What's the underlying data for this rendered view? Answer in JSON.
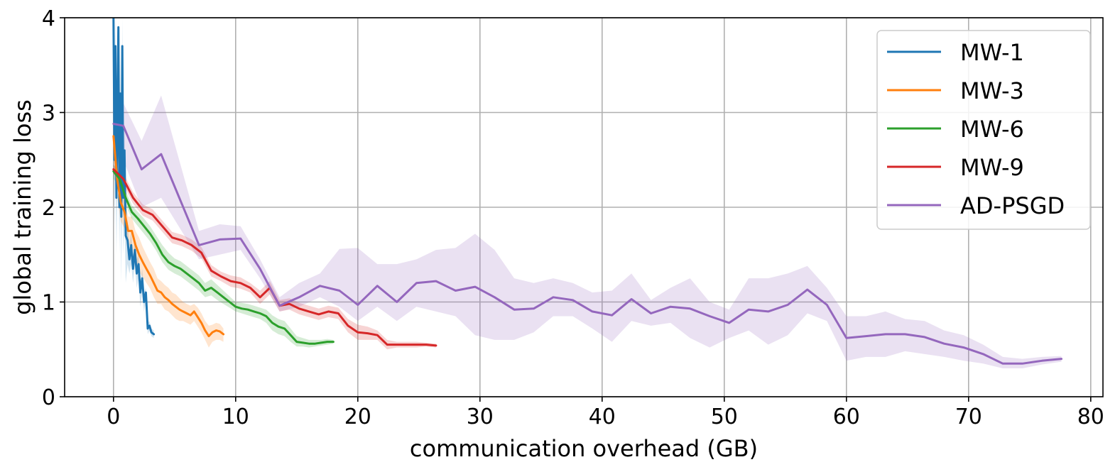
{
  "chart_data": {
    "type": "line",
    "title": "",
    "xlabel": "communication overhead (GB)",
    "ylabel": "global training loss",
    "xlim": [
      -4,
      81
    ],
    "ylim": [
      0,
      4
    ],
    "xticks": [
      0,
      10,
      20,
      30,
      40,
      50,
      60,
      70,
      80
    ],
    "yticks": [
      0,
      1,
      2,
      3,
      4
    ],
    "grid": true,
    "legend_position": "top-right",
    "series": [
      {
        "name": "MW-1",
        "color": "#1f77b4",
        "x": [
          0.0,
          0.08,
          0.16,
          0.24,
          0.32,
          0.4,
          0.48,
          0.56,
          0.64,
          0.72,
          0.8,
          0.9,
          1.0,
          1.15,
          1.3,
          1.45,
          1.6,
          1.75,
          1.9,
          2.05,
          2.2,
          2.35,
          2.5,
          2.65,
          2.8,
          2.95,
          3.1,
          3.3
        ],
        "y": [
          4.0,
          2.5,
          3.7,
          2.1,
          2.9,
          3.9,
          2.0,
          3.2,
          1.9,
          3.7,
          2.1,
          2.6,
          1.7,
          1.65,
          1.45,
          1.6,
          1.35,
          1.55,
          1.3,
          1.4,
          1.1,
          1.25,
          1.0,
          1.1,
          0.72,
          0.75,
          0.68,
          0.66
        ],
        "upper": [
          4.0,
          3.0,
          4.0,
          2.6,
          3.3,
          4.0,
          2.4,
          3.6,
          2.3,
          4.0,
          2.4,
          2.9,
          1.95,
          1.85,
          1.6,
          1.75,
          1.5,
          1.65,
          1.45,
          1.5,
          1.2,
          1.35,
          1.1,
          1.15,
          0.78,
          0.8,
          0.72,
          0.7
        ],
        "lower": [
          3.0,
          1.8,
          2.6,
          1.5,
          2.2,
          2.6,
          1.5,
          2.2,
          1.2,
          2.5,
          1.5,
          1.9,
          1.2,
          1.4,
          1.3,
          1.4,
          1.2,
          1.4,
          1.15,
          1.25,
          0.95,
          1.1,
          0.9,
          1.0,
          0.66,
          0.7,
          0.64,
          0.62
        ]
      },
      {
        "name": "MW-3",
        "color": "#ff7f0e",
        "x": [
          0.0,
          0.3,
          0.6,
          0.9,
          1.2,
          1.5,
          1.8,
          2.1,
          2.4,
          2.7,
          3.0,
          3.3,
          3.6,
          3.9,
          4.2,
          4.5,
          4.8,
          5.1,
          5.4,
          5.7,
          6.0,
          6.3,
          6.6,
          6.9,
          7.2,
          7.5,
          7.8,
          8.1,
          8.4,
          8.7,
          9.0
        ],
        "y": [
          2.75,
          2.3,
          2.05,
          1.95,
          1.75,
          1.75,
          1.6,
          1.5,
          1.42,
          1.35,
          1.28,
          1.2,
          1.12,
          1.1,
          1.05,
          1.02,
          0.98,
          0.95,
          0.92,
          0.9,
          0.88,
          0.86,
          0.9,
          0.84,
          0.78,
          0.7,
          0.64,
          0.68,
          0.7,
          0.69,
          0.66
        ],
        "upper": [
          2.85,
          2.5,
          2.2,
          2.1,
          1.9,
          1.9,
          1.75,
          1.68,
          1.58,
          1.5,
          1.42,
          1.35,
          1.25,
          1.22,
          1.18,
          1.15,
          1.1,
          1.08,
          1.04,
          1.0,
          0.98,
          0.96,
          0.98,
          0.94,
          0.88,
          0.8,
          0.75,
          0.76,
          0.78,
          0.77,
          0.72
        ],
        "lower": [
          2.5,
          2.1,
          1.85,
          1.78,
          1.6,
          1.6,
          1.45,
          1.32,
          1.26,
          1.2,
          1.14,
          1.05,
          0.98,
          0.98,
          0.92,
          0.9,
          0.86,
          0.82,
          0.8,
          0.8,
          0.78,
          0.76,
          0.8,
          0.74,
          0.68,
          0.6,
          0.52,
          0.58,
          0.6,
          0.6,
          0.58
        ]
      },
      {
        "name": "MW-6",
        "color": "#2ca02c",
        "x": [
          0.0,
          0.5,
          1.0,
          1.5,
          2.0,
          2.5,
          3.0,
          3.5,
          4.0,
          4.5,
          5.0,
          5.5,
          6.0,
          6.5,
          7.0,
          7.5,
          8.0,
          8.5,
          9.0,
          9.5,
          10.0,
          10.5,
          11.0,
          11.5,
          12.0,
          12.5,
          13.0,
          13.5,
          14.0,
          14.5,
          15.0,
          15.5,
          16.0,
          16.5,
          17.0,
          17.5,
          18.0
        ],
        "y": [
          2.38,
          2.3,
          2.1,
          1.95,
          1.88,
          1.8,
          1.72,
          1.62,
          1.5,
          1.42,
          1.38,
          1.35,
          1.3,
          1.25,
          1.2,
          1.12,
          1.15,
          1.1,
          1.05,
          1.0,
          0.95,
          0.93,
          0.92,
          0.9,
          0.88,
          0.85,
          0.78,
          0.74,
          0.72,
          0.65,
          0.58,
          0.57,
          0.56,
          0.56,
          0.57,
          0.58,
          0.58
        ],
        "upper": [
          2.45,
          2.36,
          2.18,
          2.02,
          1.95,
          1.88,
          1.8,
          1.7,
          1.6,
          1.52,
          1.46,
          1.43,
          1.38,
          1.33,
          1.28,
          1.2,
          1.24,
          1.18,
          1.12,
          1.06,
          1.0,
          0.99,
          0.98,
          0.96,
          0.94,
          0.92,
          0.86,
          0.82,
          0.8,
          0.72,
          0.64,
          0.62,
          0.6,
          0.6,
          0.6,
          0.61,
          0.6
        ],
        "lower": [
          2.3,
          2.22,
          2.02,
          1.88,
          1.8,
          1.72,
          1.64,
          1.54,
          1.42,
          1.34,
          1.3,
          1.27,
          1.22,
          1.17,
          1.12,
          1.05,
          1.07,
          1.02,
          0.98,
          0.94,
          0.9,
          0.88,
          0.86,
          0.84,
          0.82,
          0.78,
          0.7,
          0.66,
          0.64,
          0.58,
          0.53,
          0.53,
          0.52,
          0.53,
          0.54,
          0.55,
          0.56
        ]
      },
      {
        "name": "MW-9",
        "color": "#d62728",
        "x": [
          0.0,
          0.8,
          1.6,
          2.4,
          3.2,
          4.0,
          4.8,
          5.6,
          6.4,
          7.2,
          8.0,
          8.8,
          9.6,
          10.4,
          11.2,
          12.0,
          12.8,
          13.6,
          14.4,
          15.2,
          16.0,
          16.8,
          17.6,
          18.4,
          19.2,
          20.0,
          20.8,
          21.6,
          22.4,
          23.2,
          24.0,
          24.8,
          25.6,
          26.4
        ],
        "y": [
          2.4,
          2.3,
          2.1,
          1.97,
          1.92,
          1.8,
          1.68,
          1.65,
          1.6,
          1.52,
          1.33,
          1.27,
          1.22,
          1.2,
          1.15,
          1.05,
          1.15,
          0.96,
          0.98,
          0.93,
          0.9,
          0.87,
          0.9,
          0.88,
          0.75,
          0.68,
          0.67,
          0.65,
          0.55,
          0.55,
          0.55,
          0.55,
          0.55,
          0.54
        ],
        "upper": [
          2.45,
          2.36,
          2.16,
          2.03,
          1.98,
          1.86,
          1.74,
          1.71,
          1.66,
          1.58,
          1.39,
          1.32,
          1.28,
          1.26,
          1.2,
          1.12,
          1.22,
          1.02,
          1.04,
          0.99,
          0.96,
          0.93,
          0.96,
          0.94,
          0.82,
          0.76,
          0.74,
          0.7,
          0.6,
          0.58,
          0.58,
          0.58,
          0.57,
          0.56
        ],
        "lower": [
          2.35,
          2.24,
          2.04,
          1.91,
          1.86,
          1.74,
          1.62,
          1.59,
          1.54,
          1.46,
          1.27,
          1.22,
          1.16,
          1.14,
          1.1,
          0.98,
          1.08,
          0.9,
          0.92,
          0.87,
          0.84,
          0.81,
          0.84,
          0.82,
          0.68,
          0.6,
          0.6,
          0.6,
          0.5,
          0.52,
          0.52,
          0.52,
          0.53,
          0.52
        ]
      },
      {
        "name": "AD-PSGD",
        "color": "#9467bd",
        "x": [
          0.0,
          0.8,
          2.3,
          3.9,
          7.0,
          8.7,
          10.4,
          12.0,
          13.6,
          15.2,
          16.9,
          18.5,
          20.0,
          21.6,
          23.2,
          24.8,
          26.4,
          28.0,
          29.6,
          31.2,
          32.8,
          34.4,
          36.0,
          37.6,
          39.2,
          40.8,
          42.4,
          44.0,
          45.6,
          47.2,
          48.8,
          50.4,
          52.0,
          53.6,
          55.2,
          56.8,
          58.4,
          60.0,
          61.6,
          63.2,
          64.8,
          66.4,
          68.0,
          69.6,
          71.2,
          72.8,
          74.4,
          76.0,
          77.6
        ],
        "y": [
          2.88,
          2.86,
          2.4,
          2.56,
          1.6,
          1.66,
          1.67,
          1.35,
          0.96,
          1.05,
          1.17,
          1.12,
          0.97,
          1.17,
          1.0,
          1.2,
          1.22,
          1.12,
          1.16,
          1.05,
          0.92,
          0.93,
          1.05,
          1.02,
          0.9,
          0.86,
          1.03,
          0.88,
          0.95,
          0.93,
          0.85,
          0.78,
          0.92,
          0.9,
          0.97,
          1.13,
          0.97,
          0.62,
          0.64,
          0.66,
          0.66,
          0.63,
          0.56,
          0.52,
          0.45,
          0.35,
          0.35,
          0.38,
          0.4
        ],
        "upper": [
          3.1,
          3.1,
          2.7,
          3.18,
          1.75,
          1.82,
          1.8,
          1.45,
          1.05,
          1.2,
          1.3,
          1.56,
          1.57,
          1.4,
          1.4,
          1.45,
          1.55,
          1.57,
          1.72,
          1.55,
          1.25,
          1.2,
          1.25,
          1.2,
          1.1,
          1.12,
          1.3,
          1.02,
          1.15,
          1.25,
          1.0,
          0.92,
          1.25,
          1.25,
          1.3,
          1.38,
          1.15,
          0.85,
          0.85,
          0.9,
          0.82,
          0.8,
          0.7,
          0.65,
          0.55,
          0.42,
          0.4,
          0.42,
          0.43
        ],
        "lower": [
          2.6,
          2.5,
          2.0,
          2.1,
          1.45,
          1.5,
          1.55,
          1.25,
          0.9,
          0.95,
          1.05,
          0.95,
          0.8,
          0.95,
          0.8,
          0.95,
          0.9,
          0.85,
          0.65,
          0.6,
          0.6,
          0.68,
          0.85,
          0.85,
          0.72,
          0.58,
          0.8,
          0.75,
          0.78,
          0.62,
          0.52,
          0.62,
          0.7,
          0.55,
          0.65,
          0.88,
          0.8,
          0.38,
          0.42,
          0.42,
          0.48,
          0.45,
          0.42,
          0.38,
          0.35,
          0.3,
          0.3,
          0.34,
          0.37
        ]
      }
    ]
  }
}
